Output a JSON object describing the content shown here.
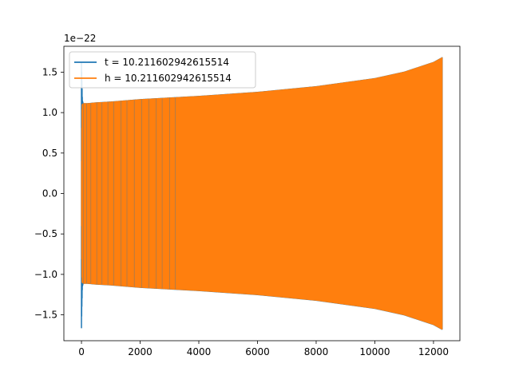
{
  "chart_data": {
    "type": "line",
    "title": "",
    "xlabel": "",
    "ylabel": "",
    "offset_text": "1e−22",
    "xlim": [
      -600,
      12900
    ],
    "ylim": [
      -1.82,
      1.82
    ],
    "xticks": [
      0,
      2000,
      4000,
      6000,
      8000,
      10000,
      12000
    ],
    "xtick_labels": [
      "0",
      "2000",
      "4000",
      "6000",
      "8000",
      "10000",
      "12000"
    ],
    "yticks": [
      -1.5,
      -1.0,
      -0.5,
      0.0,
      0.5,
      1.0,
      1.5
    ],
    "ytick_labels": [
      "−1.5",
      "−1.0",
      "−0.5",
      "0.0",
      "0.5",
      "1.0",
      "1.5"
    ],
    "grid": false,
    "legend_position": "upper-left",
    "series": [
      {
        "name": "t = 10.211602942615514",
        "color": "#1f77b4",
        "description_points": {
          "x": [
            0,
            10,
            20,
            30,
            60,
            100,
            200,
            500,
            1000,
            2000,
            4000,
            6000,
            8000,
            10000,
            11000,
            12000,
            12300
          ],
          "y_upper": [
            1.62,
            1.45,
            1.3,
            1.15,
            1.11,
            1.11,
            1.11,
            1.12,
            1.13,
            1.16,
            1.2,
            1.25,
            1.32,
            1.42,
            1.5,
            1.62,
            1.68
          ],
          "y_lower": [
            -1.66,
            -1.45,
            -1.3,
            -1.15,
            -1.11,
            -1.11,
            -1.11,
            -1.12,
            -1.13,
            -1.16,
            -1.2,
            -1.25,
            -1.32,
            -1.42,
            -1.5,
            -1.62,
            -1.68
          ]
        }
      },
      {
        "name": "h = 10.211602942615514",
        "color": "#ff7f0e",
        "description_points": {
          "x": [
            0,
            10,
            20,
            30,
            60,
            100,
            200,
            500,
            1000,
            2000,
            4000,
            6000,
            8000,
            10000,
            11000,
            12000,
            12300
          ],
          "y_upper": [
            0.4,
            1.0,
            1.1,
            1.1,
            1.11,
            1.11,
            1.11,
            1.12,
            1.13,
            1.16,
            1.2,
            1.25,
            1.32,
            1.42,
            1.5,
            1.62,
            1.68
          ],
          "y_lower": [
            -0.4,
            -1.0,
            -1.1,
            -1.1,
            -1.11,
            -1.11,
            -1.11,
            -1.12,
            -1.13,
            -1.16,
            -1.2,
            -1.25,
            -1.32,
            -1.42,
            -1.5,
            -1.62,
            -1.68
          ]
        }
      }
    ]
  }
}
